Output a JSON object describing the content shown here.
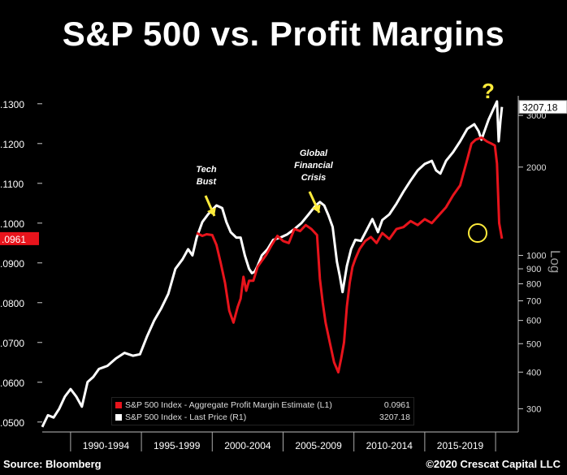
{
  "title": "S&P 500 vs. Profit Margins",
  "source": "Source: Bloomberg",
  "credit": "©2020 Crescat Capital LLC",
  "colors": {
    "margin": "#e8141c",
    "price": "#ffffff",
    "arrow": "#ffeb3b",
    "background": "#000000"
  },
  "annotations": {
    "tech_bust": [
      "Tech",
      "Bust"
    ],
    "gfc": [
      "Global",
      "Financial",
      "Crisis"
    ],
    "question": "?"
  },
  "legend": {
    "margin_label": "S&P 500 Index - Aggregate Profit Margin Estimate (L1)",
    "margin_value": "0.0961",
    "price_label": "S&P 500 Index - Last Price (R1)",
    "price_value": "3207.18"
  },
  "chart_data": {
    "type": "line",
    "title": "S&P 500 vs. Profit Margins",
    "x_range": [
      1988.0,
      2021.6
    ],
    "period_labels": [
      "1990-1994",
      "1995-1999",
      "2000-2004",
      "2005-2009",
      "2010-2014",
      "2015-2019"
    ],
    "left_axis": {
      "ticks": [
        0.05,
        0.06,
        0.07,
        0.08,
        0.09,
        0.1,
        0.11,
        0.12,
        0.13
      ],
      "tick_labels": [
        ".0500",
        ".0600",
        ".0700",
        ".0800",
        ".0900",
        ".1000",
        ".1100",
        ".1200",
        ".1300"
      ],
      "range": [
        0.0475,
        0.132
      ],
      "current_label": ".0961"
    },
    "right_axis": {
      "scale": "log",
      "label": "Log",
      "ticks": [
        300,
        400,
        500,
        600,
        700,
        800,
        900,
        1000,
        2000,
        3000
      ],
      "tick_labels": [
        "300",
        "400",
        "500",
        "600",
        "700",
        "800",
        "900",
        "1000",
        "2000",
        "3000"
      ],
      "range": [
        250,
        3500
      ],
      "current_label": "3207.18"
    },
    "series": [
      {
        "name": "S&P 500 Index - Aggregate Profit Margin Estimate (L1)",
        "axis": "left",
        "x": [
          1998.9,
          1999.3,
          1999.6,
          2000.0,
          2000.3,
          2000.6,
          2000.9,
          2001.2,
          2001.5,
          2001.8,
          2002.0,
          2002.2,
          2002.4,
          2002.6,
          2002.9,
          2003.2,
          2003.5,
          2003.8,
          2004.2,
          2004.6,
          2005.0,
          2005.4,
          2005.8,
          2006.2,
          2006.6,
          2007.0,
          2007.4,
          2007.6,
          2007.8,
          2008.0,
          2008.3,
          2008.6,
          2008.9,
          2009.1,
          2009.3,
          2009.5,
          2009.7,
          2009.9,
          2010.1,
          2010.4,
          2010.8,
          2011.2,
          2011.6,
          2012.0,
          2012.5,
          2013.0,
          2013.5,
          2014.0,
          2014.5,
          2015.0,
          2015.5,
          2016.0,
          2016.5,
          2017.0,
          2017.5,
          2018.0,
          2018.3,
          2018.6,
          2019.0,
          2019.4,
          2019.7,
          2019.95,
          2020.1,
          2020.25,
          2020.45
        ],
        "values": [
          0.0975,
          0.0968,
          0.0972,
          0.097,
          0.0945,
          0.09,
          0.085,
          0.078,
          0.075,
          0.079,
          0.081,
          0.0865,
          0.083,
          0.0855,
          0.0855,
          0.089,
          0.0905,
          0.092,
          0.0945,
          0.0968,
          0.0955,
          0.095,
          0.0985,
          0.098,
          0.0995,
          0.0985,
          0.097,
          0.086,
          0.08,
          0.075,
          0.07,
          0.065,
          0.0625,
          0.066,
          0.07,
          0.079,
          0.085,
          0.089,
          0.091,
          0.0935,
          0.0955,
          0.0965,
          0.095,
          0.0975,
          0.096,
          0.0985,
          0.099,
          0.1005,
          0.0995,
          0.101,
          0.1,
          0.102,
          0.104,
          0.107,
          0.1095,
          0.116,
          0.12,
          0.121,
          0.1215,
          0.1205,
          0.12,
          0.1195,
          0.115,
          0.1,
          0.0961
        ]
      },
      {
        "name": "S&P 500 Index - Last Price (R1)",
        "axis": "right",
        "x": [
          1988.0,
          1988.4,
          1988.8,
          1989.2,
          1989.6,
          1990.0,
          1990.4,
          1990.8,
          1991.2,
          1991.6,
          1992.0,
          1992.6,
          1993.2,
          1993.8,
          1994.4,
          1994.9,
          1995.4,
          1995.9,
          1996.4,
          1996.9,
          1997.4,
          1997.9,
          1998.3,
          1998.6,
          1998.9,
          1999.3,
          1999.7,
          2000.0,
          2000.3,
          2000.7,
          2001.0,
          2001.3,
          2001.7,
          2002.0,
          2002.3,
          2002.6,
          2002.8,
          2003.0,
          2003.2,
          2003.5,
          2003.9,
          2004.3,
          2004.8,
          2005.3,
          2005.8,
          2006.3,
          2006.8,
          2007.3,
          2007.6,
          2007.9,
          2008.2,
          2008.5,
          2008.8,
          2009.0,
          2009.2,
          2009.5,
          2009.8,
          2010.1,
          2010.5,
          2010.9,
          2011.3,
          2011.7,
          2012.0,
          2012.5,
          2013.0,
          2013.5,
          2014.0,
          2014.5,
          2015.0,
          2015.5,
          2015.8,
          2016.1,
          2016.5,
          2017.0,
          2017.5,
          2018.0,
          2018.5,
          2018.8,
          2019.0,
          2019.5,
          2019.9,
          2020.1,
          2020.22,
          2020.35,
          2020.45
        ],
        "values": [
          260,
          285,
          280,
          300,
          330,
          350,
          330,
          305,
          370,
          385,
          410,
          420,
          445,
          465,
          455,
          460,
          530,
          600,
          660,
          740,
          900,
          970,
          1050,
          1000,
          1150,
          1300,
          1380,
          1430,
          1480,
          1450,
          1300,
          1200,
          1150,
          1150,
          1000,
          900,
          870,
          880,
          920,
          1000,
          1050,
          1130,
          1150,
          1180,
          1230,
          1290,
          1380,
          1480,
          1520,
          1480,
          1370,
          1250,
          950,
          850,
          750,
          920,
          1050,
          1130,
          1120,
          1220,
          1330,
          1200,
          1320,
          1380,
          1500,
          1650,
          1800,
          1950,
          2050,
          2100,
          1950,
          1900,
          2100,
          2250,
          2450,
          2700,
          2800,
          2650,
          2480,
          2900,
          3200,
          3350,
          2450,
          2900,
          3207.18
        ]
      }
    ]
  }
}
